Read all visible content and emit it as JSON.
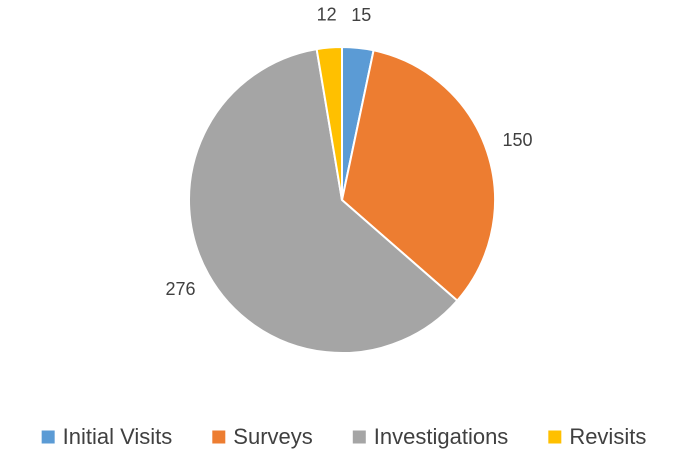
{
  "chart_data": {
    "type": "pie",
    "categories": [
      "Initial Visits",
      "Surveys",
      "Investigations",
      "Revisits"
    ],
    "values": [
      15,
      150,
      276,
      12
    ],
    "colors": [
      "#5b9bd5",
      "#ed7d31",
      "#a5a5a5",
      "#ffc000"
    ],
    "legend": "bottom"
  }
}
